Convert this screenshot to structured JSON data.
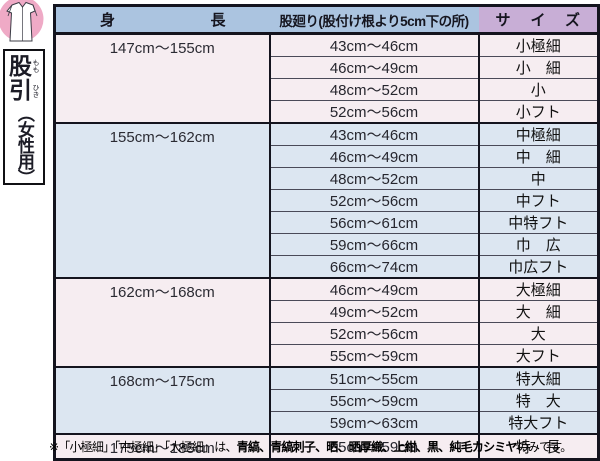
{
  "sidebar": {
    "icon": "momohiki-garment",
    "title": {
      "kanji1": "股",
      "furigana1": "もも",
      "kanji2": "引",
      "furigana2": "ひき",
      "subtitle": "（女性用）"
    }
  },
  "table": {
    "headers": {
      "height": "身長",
      "girth": "股廻り(股付け根より5cm下の所)",
      "size": "サイズ"
    },
    "groups": [
      {
        "height": "147cm～155cm",
        "tone": "pink",
        "rows": [
          {
            "girth": "43cm～46cm",
            "size": "小極細"
          },
          {
            "girth": "46cm～49cm",
            "size": "小　細"
          },
          {
            "girth": "48cm～52cm",
            "size": "小"
          },
          {
            "girth": "52cm～56cm",
            "size": "小フト"
          }
        ]
      },
      {
        "height": "155cm～162cm",
        "tone": "blue",
        "rows": [
          {
            "girth": "43cm～46cm",
            "size": "中極細"
          },
          {
            "girth": "46cm～49cm",
            "size": "中　細"
          },
          {
            "girth": "48cm～52cm",
            "size": "中"
          },
          {
            "girth": "52cm～56cm",
            "size": "中フト"
          },
          {
            "girth": "56cm～61cm",
            "size": "中特フト"
          },
          {
            "girth": "59cm～66cm",
            "size": "巾　広"
          },
          {
            "girth": "66cm～74cm",
            "size": "巾広フト"
          }
        ]
      },
      {
        "height": "162cm～168cm",
        "tone": "pink",
        "rows": [
          {
            "girth": "46cm～49cm",
            "size": "大極細"
          },
          {
            "girth": "49cm～52cm",
            "size": "大　細"
          },
          {
            "girth": "52cm～56cm",
            "size": "大"
          },
          {
            "girth": "55cm～59cm",
            "size": "大フト"
          }
        ]
      },
      {
        "height": "168cm～175cm",
        "tone": "blue",
        "rows": [
          {
            "girth": "51cm～55cm",
            "size": "特大細"
          },
          {
            "girth": "55cm～59cm",
            "size": "特　大"
          },
          {
            "girth": "59cm～63cm",
            "size": "特大フト"
          }
        ]
      },
      {
        "height": "175cm～185cm",
        "tone": "pink",
        "rows": [
          {
            "girth": "55cm～59cm",
            "size": "特　長"
          }
        ]
      }
    ]
  },
  "footnote": {
    "prefix": "※「小極細」「中極細」「大極細」は、",
    "bold": "青縞、青縞刺子、晒、晒厚織、上紺、黒、純毛カシミヤ",
    "suffix": "のみです。"
  },
  "colors": {
    "header_blue": "#abc4e0",
    "header_purple": "#c8aed6",
    "group_pink": "#f6edf1",
    "group_blue": "#dce6f1",
    "circle_pink": "#efaac6",
    "border_dark": "#14141e"
  }
}
